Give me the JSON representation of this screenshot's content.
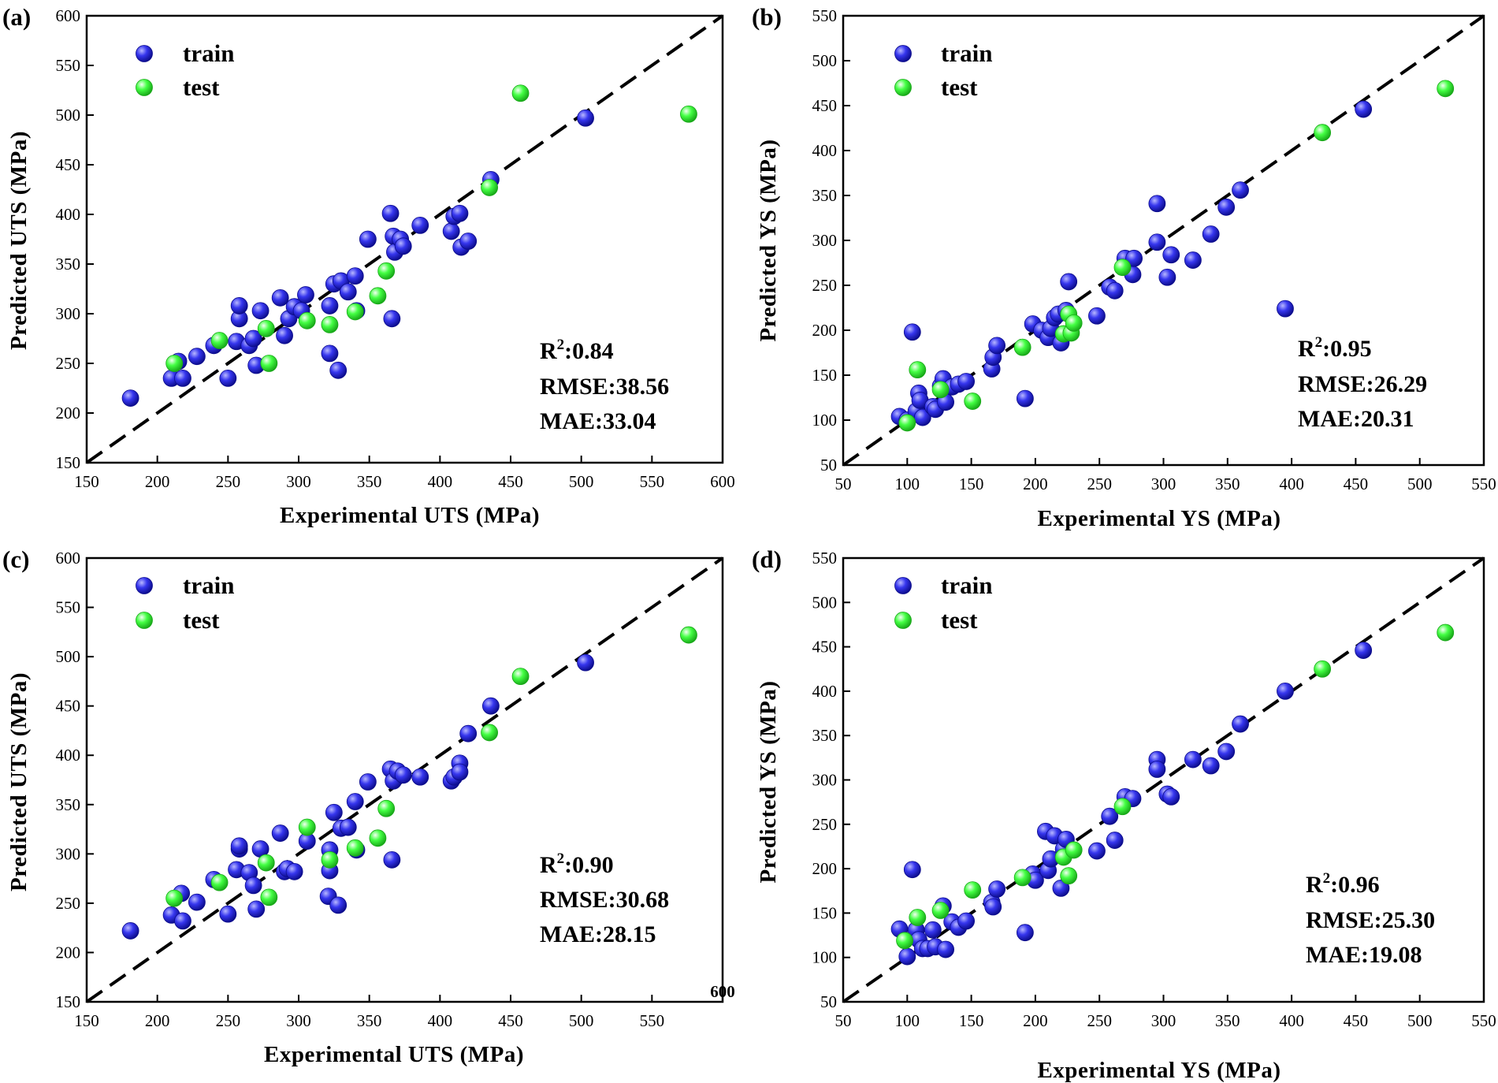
{
  "chart_data": [
    {
      "type": "scatter",
      "panel": "(a)",
      "xlabel": "Experimental  UTS (MPa)",
      "ylabel": "Predicted  UTS (MPa)",
      "xlim": [
        150,
        600
      ],
      "ylim": [
        150,
        600
      ],
      "xticks": [
        150,
        200,
        250,
        300,
        350,
        400,
        450,
        500,
        550,
        600
      ],
      "yticks": [
        150,
        200,
        250,
        300,
        350,
        400,
        450,
        500,
        550,
        600
      ],
      "legend": [
        "train",
        "test"
      ],
      "legend_position": "top-left",
      "metrics": {
        "r2_label": "R",
        "r2_sup": "2",
        "r2_value": ":0.84",
        "rmse": "RMSE:38.56",
        "mae": "MAE:33.04"
      },
      "reference_line": "y = x",
      "series": [
        {
          "name": "train",
          "color": "#2020d8",
          "points": [
            [
              181,
              215
            ],
            [
              210,
              235
            ],
            [
              215,
              252
            ],
            [
              218,
              235
            ],
            [
              228,
              257
            ],
            [
              240,
              268
            ],
            [
              250,
              235
            ],
            [
              256,
              272
            ],
            [
              258,
              295
            ],
            [
              258,
              308
            ],
            [
              265,
              268
            ],
            [
              268,
              275
            ],
            [
              270,
              248
            ],
            [
              273,
              303
            ],
            [
              287,
              316
            ],
            [
              290,
              278
            ],
            [
              293,
              295
            ],
            [
              297,
              307
            ],
            [
              302,
              303
            ],
            [
              305,
              319
            ],
            [
              322,
              308
            ],
            [
              322,
              260
            ],
            [
              325,
              330
            ],
            [
              328,
              243
            ],
            [
              330,
              333
            ],
            [
              335,
              322
            ],
            [
              340,
              338
            ],
            [
              341,
              303
            ],
            [
              349,
              375
            ],
            [
              365,
              401
            ],
            [
              366,
              295
            ],
            [
              367,
              378
            ],
            [
              368,
              362
            ],
            [
              372,
              375
            ],
            [
              374,
              368
            ],
            [
              386,
              389
            ],
            [
              408,
              383
            ],
            [
              410,
              398
            ],
            [
              414,
              401
            ],
            [
              415,
              367
            ],
            [
              420,
              373
            ],
            [
              436,
              435
            ],
            [
              503,
              497
            ]
          ]
        },
        {
          "name": "test",
          "color": "#33ee33",
          "points": [
            [
              212,
              250
            ],
            [
              244,
              273
            ],
            [
              277,
              285
            ],
            [
              279,
              250
            ],
            [
              306,
              293
            ],
            [
              322,
              289
            ],
            [
              340,
              302
            ],
            [
              356,
              318
            ],
            [
              362,
              343
            ],
            [
              435,
              427
            ],
            [
              457,
              522
            ],
            [
              576,
              501
            ]
          ]
        }
      ]
    },
    {
      "type": "scatter",
      "panel": "(b)",
      "xlabel": "Experimental  YS (MPa)",
      "ylabel": "Predicted  YS (MPa)",
      "xlim": [
        50,
        550
      ],
      "ylim": [
        50,
        550
      ],
      "xticks": [
        50,
        100,
        150,
        200,
        250,
        300,
        350,
        400,
        450,
        500,
        550
      ],
      "yticks": [
        50,
        100,
        150,
        200,
        250,
        300,
        350,
        400,
        450,
        500,
        550
      ],
      "legend": [
        "train",
        "test"
      ],
      "legend_position": "top-left",
      "metrics": {
        "r2_label": "R",
        "r2_sup": "2",
        "r2_value": ":0.95",
        "rmse": "RMSE:26.29",
        "mae": "MAE:20.31"
      },
      "reference_line": "y = x",
      "series": [
        {
          "name": "train",
          "color": "#2020d8",
          "points": [
            [
              94,
              104
            ],
            [
              100,
              100
            ],
            [
              104,
              198
            ],
            [
              107,
              110
            ],
            [
              109,
              130
            ],
            [
              110,
              122
            ],
            [
              112,
              103
            ],
            [
              120,
              115
            ],
            [
              122,
              112
            ],
            [
              126,
              138
            ],
            [
              128,
              146
            ],
            [
              130,
              120
            ],
            [
              135,
              137
            ],
            [
              140,
              140
            ],
            [
              146,
              143
            ],
            [
              166,
              157
            ],
            [
              167,
              170
            ],
            [
              170,
              183
            ],
            [
              192,
              124
            ],
            [
              198,
              207
            ],
            [
              205,
              200
            ],
            [
              210,
              192
            ],
            [
              212,
              202
            ],
            [
              215,
              214
            ],
            [
              218,
              218
            ],
            [
              220,
              186
            ],
            [
              224,
              222
            ],
            [
              226,
              254
            ],
            [
              248,
              216
            ],
            [
              258,
              248
            ],
            [
              262,
              244
            ],
            [
              270,
              280
            ],
            [
              276,
              262
            ],
            [
              277,
              280
            ],
            [
              295,
              341
            ],
            [
              295,
              298
            ],
            [
              303,
              259
            ],
            [
              306,
              284
            ],
            [
              323,
              278
            ],
            [
              337,
              307
            ],
            [
              349,
              337
            ],
            [
              360,
              356
            ],
            [
              395,
              224
            ],
            [
              456,
              446
            ]
          ]
        },
        {
          "name": "test",
          "color": "#33ee33",
          "points": [
            [
              100,
              97
            ],
            [
              108,
              156
            ],
            [
              126,
              134
            ],
            [
              151,
              121
            ],
            [
              190,
              181
            ],
            [
              222,
              196
            ],
            [
              226,
              218
            ],
            [
              228,
              197
            ],
            [
              230,
              208
            ],
            [
              268,
              270
            ],
            [
              424,
              420
            ],
            [
              520,
              469
            ]
          ]
        }
      ]
    },
    {
      "type": "scatter",
      "panel": "(c)",
      "xlabel": "Experimental  UTS (MPa)",
      "ylabel": "Predicted  UTS (MPa)",
      "xlim": [
        150,
        600
      ],
      "ylim": [
        150,
        600
      ],
      "xticks": [
        150,
        200,
        250,
        300,
        350,
        400,
        450,
        500,
        550
      ],
      "yticks": [
        150,
        200,
        250,
        300,
        350,
        400,
        450,
        500,
        550,
        600
      ],
      "stray_tick": "600",
      "legend": [
        "train",
        "test"
      ],
      "legend_position": "top-left",
      "metrics": {
        "r2_label": "R",
        "r2_sup": "2",
        "r2_value": ":0.90",
        "rmse": "RMSE:30.68",
        "mae": "MAE:28.15"
      },
      "reference_line": "y = x",
      "series": [
        {
          "name": "train",
          "color": "#2020d8",
          "points": [
            [
              181,
              222
            ],
            [
              210,
              238
            ],
            [
              217,
              260
            ],
            [
              218,
              232
            ],
            [
              228,
              251
            ],
            [
              240,
              274
            ],
            [
              250,
              239
            ],
            [
              256,
              284
            ],
            [
              258,
              305
            ],
            [
              258,
              308
            ],
            [
              265,
              281
            ],
            [
              268,
              268
            ],
            [
              270,
              244
            ],
            [
              273,
              305
            ],
            [
              287,
              321
            ],
            [
              290,
              282
            ],
            [
              292,
              285
            ],
            [
              297,
              282
            ],
            [
              306,
              313
            ],
            [
              322,
              304
            ],
            [
              322,
              283
            ],
            [
              321,
              257
            ],
            [
              325,
              342
            ],
            [
              328,
              248
            ],
            [
              330,
              326
            ],
            [
              335,
              327
            ],
            [
              340,
              353
            ],
            [
              341,
              304
            ],
            [
              349,
              373
            ],
            [
              365,
              386
            ],
            [
              366,
              294
            ],
            [
              367,
              374
            ],
            [
              370,
              384
            ],
            [
              374,
              380
            ],
            [
              386,
              378
            ],
            [
              408,
              374
            ],
            [
              410,
              378
            ],
            [
              414,
              392
            ],
            [
              414,
              383
            ],
            [
              420,
              422
            ],
            [
              436,
              450
            ],
            [
              503,
              494
            ]
          ]
        },
        {
          "name": "test",
          "color": "#33ee33",
          "points": [
            [
              212,
              255
            ],
            [
              244,
              271
            ],
            [
              277,
              291
            ],
            [
              279,
              256
            ],
            [
              306,
              327
            ],
            [
              322,
              294
            ],
            [
              340,
              306
            ],
            [
              356,
              316
            ],
            [
              362,
              346
            ],
            [
              435,
              423
            ],
            [
              457,
              480
            ],
            [
              576,
              522
            ]
          ]
        }
      ]
    },
    {
      "type": "scatter",
      "panel": "(d)",
      "xlabel": "Experimental  YS (MPa)",
      "ylabel": "Predicted  YS (MPa)",
      "xlim": [
        50,
        550
      ],
      "ylim": [
        50,
        550
      ],
      "xticks": [
        50,
        100,
        150,
        200,
        250,
        300,
        350,
        400,
        450,
        500,
        550
      ],
      "yticks": [
        50,
        100,
        150,
        200,
        250,
        300,
        350,
        400,
        450,
        500,
        550
      ],
      "legend": [
        "train",
        "test"
      ],
      "legend_position": "top-left",
      "metrics": {
        "r2_label": "R",
        "r2_sup": "2",
        "r2_value": ":0.96",
        "rmse": "RMSE:25.30",
        "mae": "MAE:19.08"
      },
      "reference_line": "y = x",
      "series": [
        {
          "name": "train",
          "color": "#2020d8",
          "points": [
            [
              94,
              132
            ],
            [
              100,
              101
            ],
            [
              104,
              199
            ],
            [
              107,
              131
            ],
            [
              109,
              120
            ],
            [
              112,
              110
            ],
            [
              116,
              110
            ],
            [
              120,
              131
            ],
            [
              122,
              112
            ],
            [
              128,
              158
            ],
            [
              130,
              109
            ],
            [
              135,
              140
            ],
            [
              140,
              134
            ],
            [
              146,
              141
            ],
            [
              166,
              162
            ],
            [
              167,
              157
            ],
            [
              170,
              177
            ],
            [
              192,
              128
            ],
            [
              198,
              194
            ],
            [
              200,
              187
            ],
            [
              208,
              242
            ],
            [
              210,
              198
            ],
            [
              212,
              211
            ],
            [
              215,
              237
            ],
            [
              220,
              178
            ],
            [
              222,
              222
            ],
            [
              224,
              233
            ],
            [
              248,
              220
            ],
            [
              258,
              259
            ],
            [
              262,
              232
            ],
            [
              270,
              281
            ],
            [
              276,
              279
            ],
            [
              295,
              323
            ],
            [
              295,
              312
            ],
            [
              303,
              284
            ],
            [
              306,
              281
            ],
            [
              323,
              323
            ],
            [
              337,
              316
            ],
            [
              349,
              332
            ],
            [
              360,
              363
            ],
            [
              395,
              400
            ],
            [
              456,
              446
            ]
          ]
        },
        {
          "name": "test",
          "color": "#33ee33",
          "points": [
            [
              98,
              119
            ],
            [
              108,
              145
            ],
            [
              126,
              153
            ],
            [
              151,
              176
            ],
            [
              190,
              190
            ],
            [
              222,
              213
            ],
            [
              226,
              192
            ],
            [
              230,
              221
            ],
            [
              268,
              270
            ],
            [
              424,
              425
            ],
            [
              520,
              466
            ]
          ]
        }
      ]
    }
  ]
}
